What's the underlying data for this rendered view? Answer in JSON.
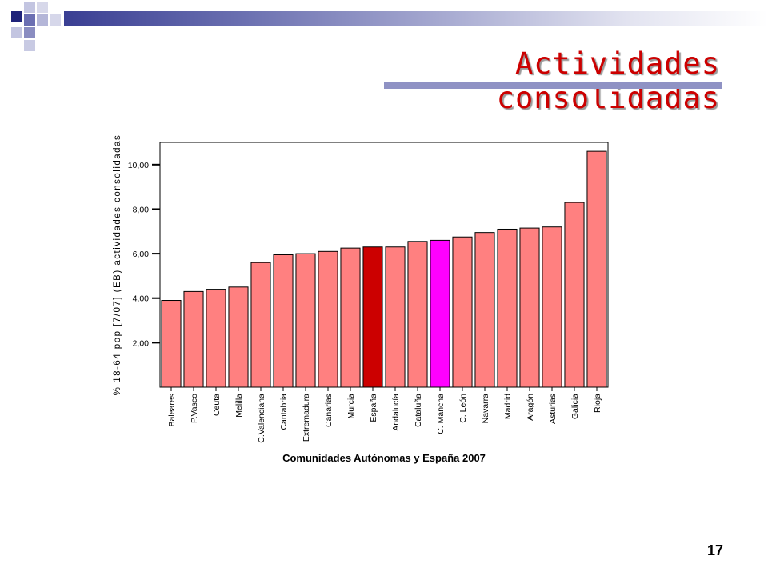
{
  "slide": {
    "title": "Actividades consolidadas",
    "page_number": "17"
  },
  "colors": {
    "bar_default": "#ff8080",
    "bar_espana": "#cc0000",
    "bar_castilla_mancha": "#ff00ff",
    "title": "#cc0000",
    "decor_blue": "#3a3f93"
  },
  "chart_data": {
    "type": "bar",
    "xlabel": "Comunidades Autónomas y España 2007",
    "ylabel": "% 18-64 pop [7/07] (EB) actividades consolidadas",
    "ylim": [
      0,
      11
    ],
    "yticks": [
      2,
      4,
      6,
      8,
      10
    ],
    "ytick_labels": [
      "2,00",
      "4,00",
      "6,00",
      "8,00",
      "10,00"
    ],
    "categories": [
      "Baleares",
      "P.Vasco",
      "Ceuta",
      "Melilla",
      "C.Valenciana",
      "Cantabria",
      "Extremadura",
      "Canarias",
      "Murcia",
      "España",
      "Andalucía",
      "Cataluña",
      "C. Mancha",
      "C. León",
      "Navarra",
      "Madrid",
      "Aragón",
      "Asturias",
      "Galicia",
      "Rioja"
    ],
    "values": [
      3.9,
      4.3,
      4.4,
      4.5,
      5.6,
      5.95,
      6.0,
      6.1,
      6.25,
      6.3,
      6.3,
      6.55,
      6.6,
      6.75,
      6.95,
      7.1,
      7.15,
      7.2,
      8.3,
      10.6
    ],
    "highlight": {
      "España": "#cc0000",
      "C. Mancha": "#ff00ff"
    },
    "grid": false,
    "legend": "none"
  }
}
